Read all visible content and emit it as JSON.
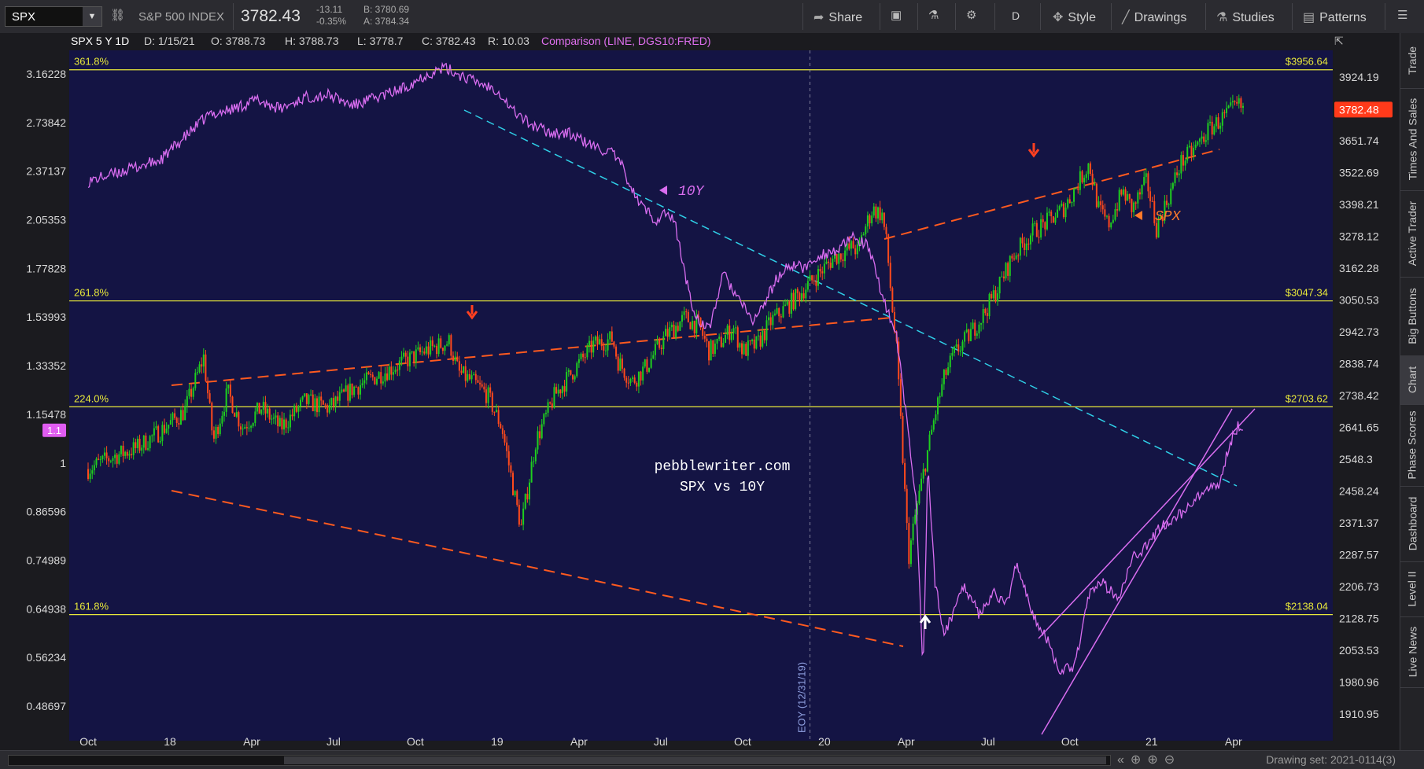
{
  "toolbar": {
    "symbol": "SPX",
    "index_name": "S&P 500 INDEX",
    "last_price": "3782.43",
    "net_change": "-13.11",
    "pct_change": "-0.35%",
    "bid": "B: 3780.69",
    "ask": "A: 3784.34",
    "share_label": "Share",
    "period_label": "D",
    "style_label": "Style",
    "drawings_label": "Drawings",
    "studies_label": "Studies",
    "patterns_label": "Patterns"
  },
  "header": {
    "title": "SPX 5 Y 1D",
    "date": "D: 1/15/21",
    "open": "O: 3788.73",
    "high": "H: 3788.73",
    "low": "L: 3778.7",
    "close": "C: 3782.43",
    "range": "R: 10.03",
    "comparison": "Comparison (LINE, DGS10:FRED)"
  },
  "right_tabs": [
    "Trade",
    "Times And Sales",
    "Active Trader",
    "Big Buttons",
    "Chart",
    "Phase Scores",
    "Dashboard",
    "Level II",
    "Live News"
  ],
  "bottom": {
    "drawing_set": "Drawing set: 2021-0114(3)"
  },
  "colors": {
    "background": "#141444",
    "up_candle": "#1fce1f",
    "down_candle": "#ff4a1c",
    "comparison": "#d96df0",
    "fib_line": "#e8e83a",
    "trendline_orange": "#ff5a1f",
    "trendline_cyan": "#2fd0e8",
    "price_tag": "#ff3a1a"
  },
  "chart_data": {
    "type": "line",
    "symbol": "SPX",
    "comparison_symbol": "DGS10:FRED",
    "x_ticks": [
      "Oct",
      "18",
      "Apr",
      "Jul",
      "Oct",
      "19",
      "Apr",
      "Jul",
      "Oct",
      "20",
      "Apr",
      "Jul",
      "Oct",
      "21",
      "Apr"
    ],
    "right_axis_ticks": [
      "3924.19",
      "3651.74",
      "3522.69",
      "3398.21",
      "3278.12",
      "3162.28",
      "3050.53",
      "2942.73",
      "2838.74",
      "2738.42",
      "2641.65",
      "2548.3",
      "2458.24",
      "2371.37",
      "2287.57",
      "2206.73",
      "2128.75",
      "2053.53",
      "1980.96",
      "1910.95"
    ],
    "left_axis_ticks": [
      "3.16228",
      "2.73842",
      "2.37137",
      "2.05353",
      "1.77828",
      "1.53993",
      "1.33352",
      "1.15478",
      "1",
      "0.86596",
      "0.74989",
      "0.64938",
      "0.56234",
      "0.48697"
    ],
    "left_axis_marker": "1.1",
    "current_price_tag": "3782.48",
    "log_scale": true,
    "grid": false,
    "fib_levels": [
      {
        "label": "361.8%",
        "price": "$3956.64",
        "value": 3956.64
      },
      {
        "label": "261.8%",
        "price": "$3047.34",
        "value": 3047.34
      },
      {
        "label": "224.0%",
        "price": "$2703.62",
        "value": 2703.62
      },
      {
        "label": "161.8%",
        "price": "$2138.04",
        "value": 2138.04
      }
    ],
    "vertical_marker": {
      "label": "EOY (12/31/19)"
    },
    "annotations": {
      "comparison_label": "10Y",
      "price_label": "SPX",
      "watermark_line1": "pebblewriter.com",
      "watermark_line2": "SPX vs 10Y"
    },
    "series": [
      {
        "name": "SPX",
        "points": [
          [
            0.0,
            2520
          ],
          [
            0.5,
            2555
          ],
          [
            1.0,
            2580
          ],
          [
            1.5,
            2630
          ],
          [
            2.0,
            2690
          ],
          [
            2.4,
            2860
          ],
          [
            2.6,
            2600
          ],
          [
            2.9,
            2750
          ],
          [
            3.2,
            2640
          ],
          [
            3.6,
            2700
          ],
          [
            4.0,
            2640
          ],
          [
            4.5,
            2720
          ],
          [
            5.0,
            2700
          ],
          [
            5.5,
            2760
          ],
          [
            6.0,
            2800
          ],
          [
            6.5,
            2840
          ],
          [
            7.0,
            2880
          ],
          [
            7.5,
            2910
          ],
          [
            7.7,
            2810
          ],
          [
            8.0,
            2780
          ],
          [
            8.3,
            2740
          ],
          [
            8.6,
            2640
          ],
          [
            8.9,
            2420
          ],
          [
            9.0,
            2360
          ],
          [
            9.3,
            2600
          ],
          [
            9.7,
            2740
          ],
          [
            10.0,
            2800
          ],
          [
            10.5,
            2900
          ],
          [
            10.9,
            2920
          ],
          [
            11.0,
            2850
          ],
          [
            11.3,
            2780
          ],
          [
            11.6,
            2830
          ],
          [
            12.0,
            2930
          ],
          [
            12.4,
            2990
          ],
          [
            12.7,
            2960
          ],
          [
            12.9,
            2880
          ],
          [
            13.1,
            2900
          ],
          [
            13.4,
            2960
          ],
          [
            13.6,
            2880
          ],
          [
            13.9,
            2900
          ],
          [
            14.2,
            2980
          ],
          [
            14.6,
            3040
          ],
          [
            15.0,
            3110
          ],
          [
            15.5,
            3200
          ],
          [
            15.9,
            3240
          ],
          [
            16.0,
            3220
          ],
          [
            16.1,
            3290
          ],
          [
            16.3,
            3380
          ],
          [
            16.5,
            3360
          ],
          [
            16.6,
            3240
          ],
          [
            16.7,
            3040
          ],
          [
            16.8,
            2880
          ],
          [
            16.95,
            2500
          ],
          [
            17.05,
            2280
          ],
          [
            17.2,
            2400
          ],
          [
            17.4,
            2540
          ],
          [
            17.6,
            2680
          ],
          [
            17.8,
            2800
          ],
          [
            18.0,
            2870
          ],
          [
            18.3,
            2930
          ],
          [
            18.6,
            3000
          ],
          [
            18.9,
            3090
          ],
          [
            19.2,
            3200
          ],
          [
            19.6,
            3290
          ],
          [
            20.0,
            3340
          ],
          [
            20.3,
            3390
          ],
          [
            20.6,
            3490
          ],
          [
            20.8,
            3560
          ],
          [
            21.0,
            3380
          ],
          [
            21.2,
            3320
          ],
          [
            21.5,
            3450
          ],
          [
            21.7,
            3380
          ],
          [
            22.0,
            3490
          ],
          [
            22.2,
            3310
          ],
          [
            22.5,
            3450
          ],
          [
            22.7,
            3560
          ],
          [
            23.0,
            3620
          ],
          [
            23.3,
            3700
          ],
          [
            23.6,
            3750
          ],
          [
            23.9,
            3800
          ],
          [
            24.0,
            3782
          ]
        ]
      },
      {
        "name": "10Y",
        "points": [
          [
            0.0,
            2.3
          ],
          [
            0.5,
            2.35
          ],
          [
            1.0,
            2.4
          ],
          [
            1.5,
            2.45
          ],
          [
            2.0,
            2.62
          ],
          [
            2.5,
            2.8
          ],
          [
            3.0,
            2.85
          ],
          [
            3.5,
            2.93
          ],
          [
            4.0,
            2.85
          ],
          [
            4.5,
            2.95
          ],
          [
            5.0,
            2.97
          ],
          [
            5.5,
            2.88
          ],
          [
            6.0,
            2.95
          ],
          [
            6.5,
            3.02
          ],
          [
            7.0,
            3.15
          ],
          [
            7.4,
            3.22
          ],
          [
            7.6,
            3.18
          ],
          [
            8.0,
            3.1
          ],
          [
            8.5,
            3.02
          ],
          [
            8.8,
            2.85
          ],
          [
            9.2,
            2.72
          ],
          [
            9.6,
            2.66
          ],
          [
            10.0,
            2.65
          ],
          [
            10.5,
            2.55
          ],
          [
            10.9,
            2.5
          ],
          [
            11.1,
            2.4
          ],
          [
            11.4,
            2.18
          ],
          [
            11.8,
            2.05
          ],
          [
            12.0,
            2.1
          ],
          [
            12.2,
            2.03
          ],
          [
            12.4,
            1.75
          ],
          [
            12.6,
            1.55
          ],
          [
            12.9,
            1.48
          ],
          [
            13.2,
            1.75
          ],
          [
            13.5,
            1.63
          ],
          [
            13.8,
            1.52
          ],
          [
            14.0,
            1.58
          ],
          [
            14.3,
            1.72
          ],
          [
            14.6,
            1.8
          ],
          [
            14.9,
            1.78
          ],
          [
            15.2,
            1.85
          ],
          [
            15.6,
            1.88
          ],
          [
            15.9,
            1.95
          ],
          [
            16.2,
            1.9
          ],
          [
            16.5,
            1.65
          ],
          [
            16.8,
            1.45
          ],
          [
            17.0,
            1.15
          ],
          [
            17.2,
            0.9
          ],
          [
            17.35,
            0.54
          ],
          [
            17.45,
            1.0
          ],
          [
            17.6,
            0.7
          ],
          [
            17.8,
            0.6
          ],
          [
            18.0,
            0.65
          ],
          [
            18.2,
            0.7
          ],
          [
            18.5,
            0.64
          ],
          [
            18.8,
            0.68
          ],
          [
            19.1,
            0.66
          ],
          [
            19.3,
            0.75
          ],
          [
            19.6,
            0.64
          ],
          [
            19.9,
            0.6
          ],
          [
            20.2,
            0.54
          ],
          [
            20.5,
            0.55
          ],
          [
            20.8,
            0.68
          ],
          [
            21.1,
            0.7
          ],
          [
            21.4,
            0.67
          ],
          [
            21.7,
            0.76
          ],
          [
            22.0,
            0.78
          ],
          [
            22.3,
            0.83
          ],
          [
            22.6,
            0.85
          ],
          [
            22.9,
            0.88
          ],
          [
            23.2,
            0.92
          ],
          [
            23.5,
            0.93
          ],
          [
            23.7,
            1.05
          ],
          [
            23.9,
            1.12
          ],
          [
            24.0,
            1.1
          ]
        ]
      }
    ]
  }
}
